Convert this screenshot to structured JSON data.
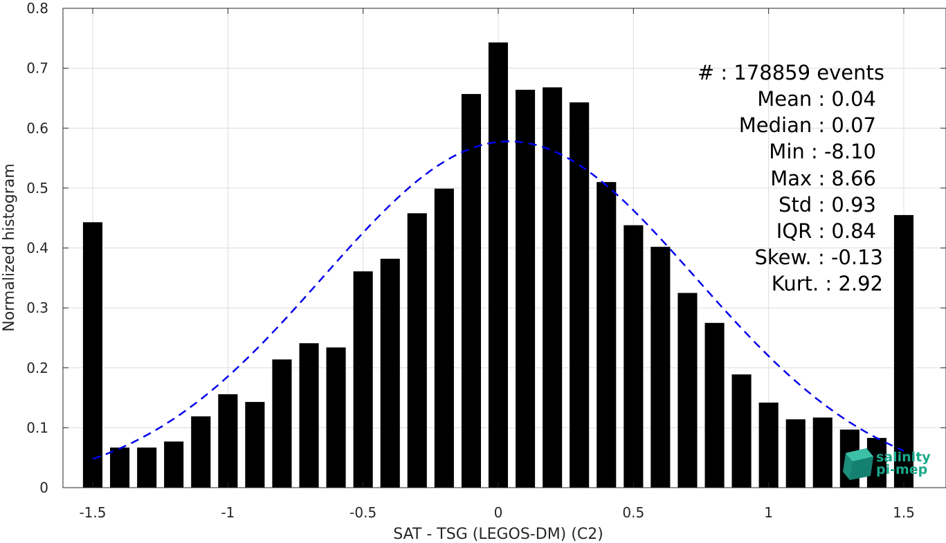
{
  "chart_data": {
    "type": "bar",
    "xlabel": "SAT - TSG (LEGOS-DM) (C2)",
    "ylabel": "Normalized histogram",
    "xlim": [
      -1.5,
      1.5
    ],
    "ylim": [
      0,
      0.8
    ],
    "x_ticks": [
      "-1.5",
      "-1",
      "-0.5",
      "0",
      "0.5",
      "1",
      "1.5"
    ],
    "y_ticks": [
      "0",
      "0.1",
      "0.2",
      "0.3",
      "0.4",
      "0.5",
      "0.6",
      "0.7",
      "0.8"
    ],
    "grid": true,
    "bar_color": "#000000",
    "fit_color": "#0000ee",
    "bins": [
      -1.5,
      -1.4,
      -1.3,
      -1.2,
      -1.1,
      -1.0,
      -0.9,
      -0.8,
      -0.7,
      -0.6,
      -0.5,
      -0.4,
      -0.3,
      -0.2,
      -0.1,
      0.0,
      0.1,
      0.2,
      0.3,
      0.4,
      0.5,
      0.6,
      0.7,
      0.8,
      0.9,
      1.0,
      1.1,
      1.2,
      1.3,
      1.4,
      1.5
    ],
    "values": [
      0.443,
      0.067,
      0.067,
      0.077,
      0.119,
      0.156,
      0.143,
      0.214,
      0.241,
      0.234,
      0.361,
      0.382,
      0.458,
      0.499,
      0.657,
      0.743,
      0.664,
      0.668,
      0.643,
      0.51,
      0.438,
      0.402,
      0.325,
      0.275,
      0.189,
      0.142,
      0.114,
      0.117,
      0.097,
      0.083,
      0.455
    ],
    "fit": {
      "type": "normal",
      "mean": 0.04,
      "std": 0.69,
      "peak": 0.578,
      "range": [
        -1.5,
        1.5
      ],
      "style": "dashed"
    }
  },
  "stats": {
    "events": "#   : 178859 events",
    "mean": "Mean : 0.04",
    "median": "Median : 0.07",
    "min": "Min : -8.10",
    "max": "Max : 8.66",
    "std": "Std : 0.93",
    "iqr": "IQR : 0.84",
    "skew": "Skew. : -0.13",
    "kurt": "Kurt. : 2.92"
  },
  "logo": {
    "line1": "salinity",
    "line2": "pi-mep",
    "color": "#1aa88c"
  }
}
